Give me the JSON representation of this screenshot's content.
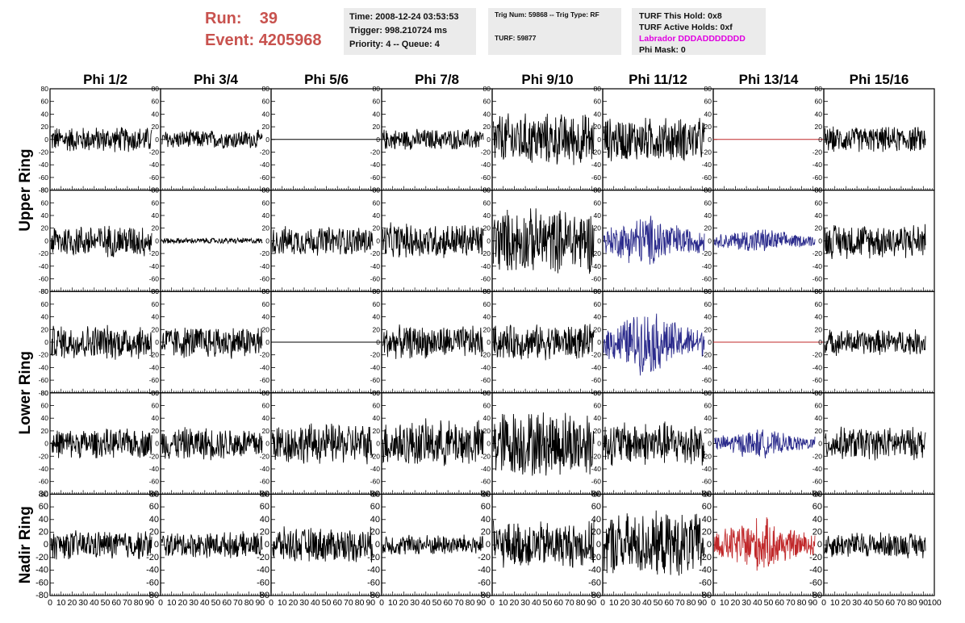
{
  "header": {
    "run_label": "Run:",
    "run_value": "39",
    "event_label": "Event:",
    "event_value": "4205968",
    "time_line": "Time: 2008-12-24 03:53:53",
    "trigger_line": "Trigger: 998.210724 ms",
    "priority_line": "Priority: 4 -- Queue: 4",
    "trig_num_line": "Trig Num: 59868 -- Trig Type: RF",
    "turf_line": "TURF: 59877",
    "turf_hold_line": "TURF This Hold: 0x8",
    "turf_active_line": "TURF Active Holds: 0xf",
    "labrador_line": "Labrador DDDADDDDDDD",
    "phi_mask_line": "Phi Mask: 0"
  },
  "chart_data": {
    "type": "line",
    "columns": [
      "Phi 1/2",
      "Phi 3/4",
      "Phi 5/6",
      "Phi 7/8",
      "Phi 9/10",
      "Phi 11/12",
      "Phi 13/14",
      "Phi 15/16"
    ],
    "ring_labels": [
      "Upper Ring",
      "Lower Ring",
      "Nadir Ring"
    ],
    "rows": 5,
    "xlim": [
      0,
      100
    ],
    "ylim": [
      -80,
      80
    ],
    "y_ticks": [
      80,
      60,
      40,
      20,
      0,
      -20,
      -40,
      -60,
      -80
    ],
    "x_ticks": [
      0,
      10,
      20,
      30,
      40,
      50,
      60,
      70,
      80,
      90,
      100
    ],
    "colors": {
      "normal": "#000000",
      "highlight_blue": "#2b2b8c",
      "highlight_red": "#c0282a",
      "flat_red": "#c0282a"
    },
    "panels": [
      [
        {
          "amp": 22,
          "color": "normal"
        },
        {
          "amp": 16,
          "color": "normal"
        },
        {
          "amp": 0,
          "color": "normal"
        },
        {
          "amp": 18,
          "color": "normal"
        },
        {
          "amp": 45,
          "color": "normal"
        },
        {
          "amp": 38,
          "color": "normal"
        },
        {
          "amp": 0,
          "color": "flat_red"
        },
        {
          "amp": 22,
          "color": "normal"
        }
      ],
      [
        {
          "amp": 28,
          "color": "normal"
        },
        {
          "amp": 5,
          "color": "normal"
        },
        {
          "amp": 25,
          "color": "normal"
        },
        {
          "amp": 30,
          "color": "normal"
        },
        {
          "amp": 55,
          "color": "normal"
        },
        {
          "amp": 45,
          "color": "highlight_blue"
        },
        {
          "amp": 22,
          "color": "highlight_blue"
        },
        {
          "amp": 30,
          "color": "normal"
        }
      ],
      [
        {
          "amp": 30,
          "color": "normal"
        },
        {
          "amp": 28,
          "color": "normal"
        },
        {
          "amp": 0,
          "color": "normal"
        },
        {
          "amp": 28,
          "color": "normal"
        },
        {
          "amp": 30,
          "color": "normal"
        },
        {
          "amp": 55,
          "color": "highlight_blue"
        },
        {
          "amp": 0,
          "color": "flat_red"
        },
        {
          "amp": 22,
          "color": "normal"
        }
      ],
      [
        {
          "amp": 25,
          "color": "normal"
        },
        {
          "amp": 28,
          "color": "normal"
        },
        {
          "amp": 35,
          "color": "normal"
        },
        {
          "amp": 40,
          "color": "normal"
        },
        {
          "amp": 58,
          "color": "normal"
        },
        {
          "amp": 38,
          "color": "normal"
        },
        {
          "amp": 25,
          "color": "highlight_blue"
        },
        {
          "amp": 28,
          "color": "normal"
        }
      ],
      [
        {
          "amp": 25,
          "color": "normal"
        },
        {
          "amp": 22,
          "color": "normal"
        },
        {
          "amp": 30,
          "color": "normal"
        },
        {
          "amp": 18,
          "color": "normal"
        },
        {
          "amp": 40,
          "color": "normal"
        },
        {
          "amp": 55,
          "color": "normal"
        },
        {
          "amp": 48,
          "color": "highlight_red"
        },
        {
          "amp": 22,
          "color": "normal"
        }
      ]
    ]
  }
}
